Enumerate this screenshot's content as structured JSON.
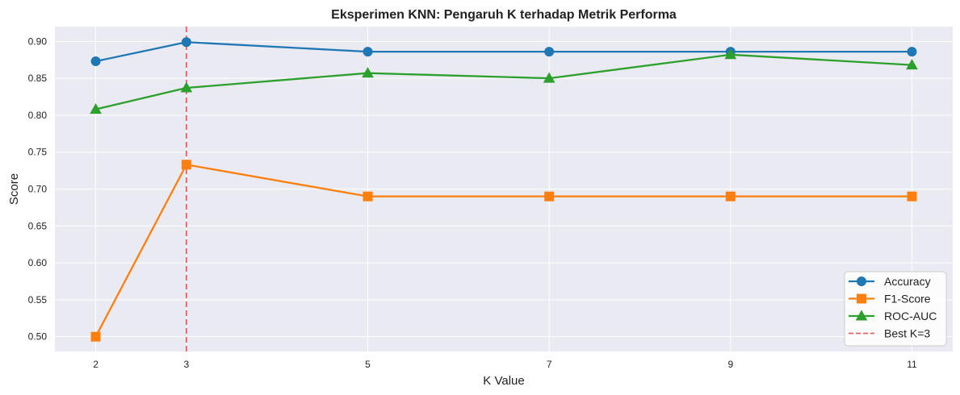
{
  "chart_data": {
    "type": "line",
    "title": "Eksperimen KNN: Pengaruh K terhadap Metrik Performa",
    "xlabel": "K Value",
    "ylabel": "Score",
    "x": [
      2,
      3,
      5,
      7,
      9,
      11
    ],
    "xticks": [
      "2",
      "3",
      "5",
      "7",
      "9",
      "11"
    ],
    "xlim": [
      1.55,
      11.45
    ],
    "ylim": [
      0.48,
      0.92
    ],
    "yticks": [
      "0.50",
      "0.55",
      "0.60",
      "0.65",
      "0.70",
      "0.75",
      "0.80",
      "0.85",
      "0.90"
    ],
    "grid": true,
    "legend_position": "lower right",
    "series": [
      {
        "name": "Accuracy",
        "marker": "circle",
        "color": "#1f77b4",
        "values": [
          0.873,
          0.899,
          0.886,
          0.886,
          0.886,
          0.886
        ]
      },
      {
        "name": "F1-Score",
        "marker": "square",
        "color": "#ff7f0e",
        "values": [
          0.5,
          0.733,
          0.69,
          0.69,
          0.69,
          0.69
        ]
      },
      {
        "name": "ROC-AUC",
        "marker": "triangle",
        "color": "#2ca02c",
        "values": [
          0.808,
          0.837,
          0.857,
          0.85,
          0.882,
          0.868
        ]
      }
    ],
    "reference_line": {
      "name": "Best K=3",
      "x": 3,
      "color": "#e8474a",
      "style": "dashed"
    }
  }
}
